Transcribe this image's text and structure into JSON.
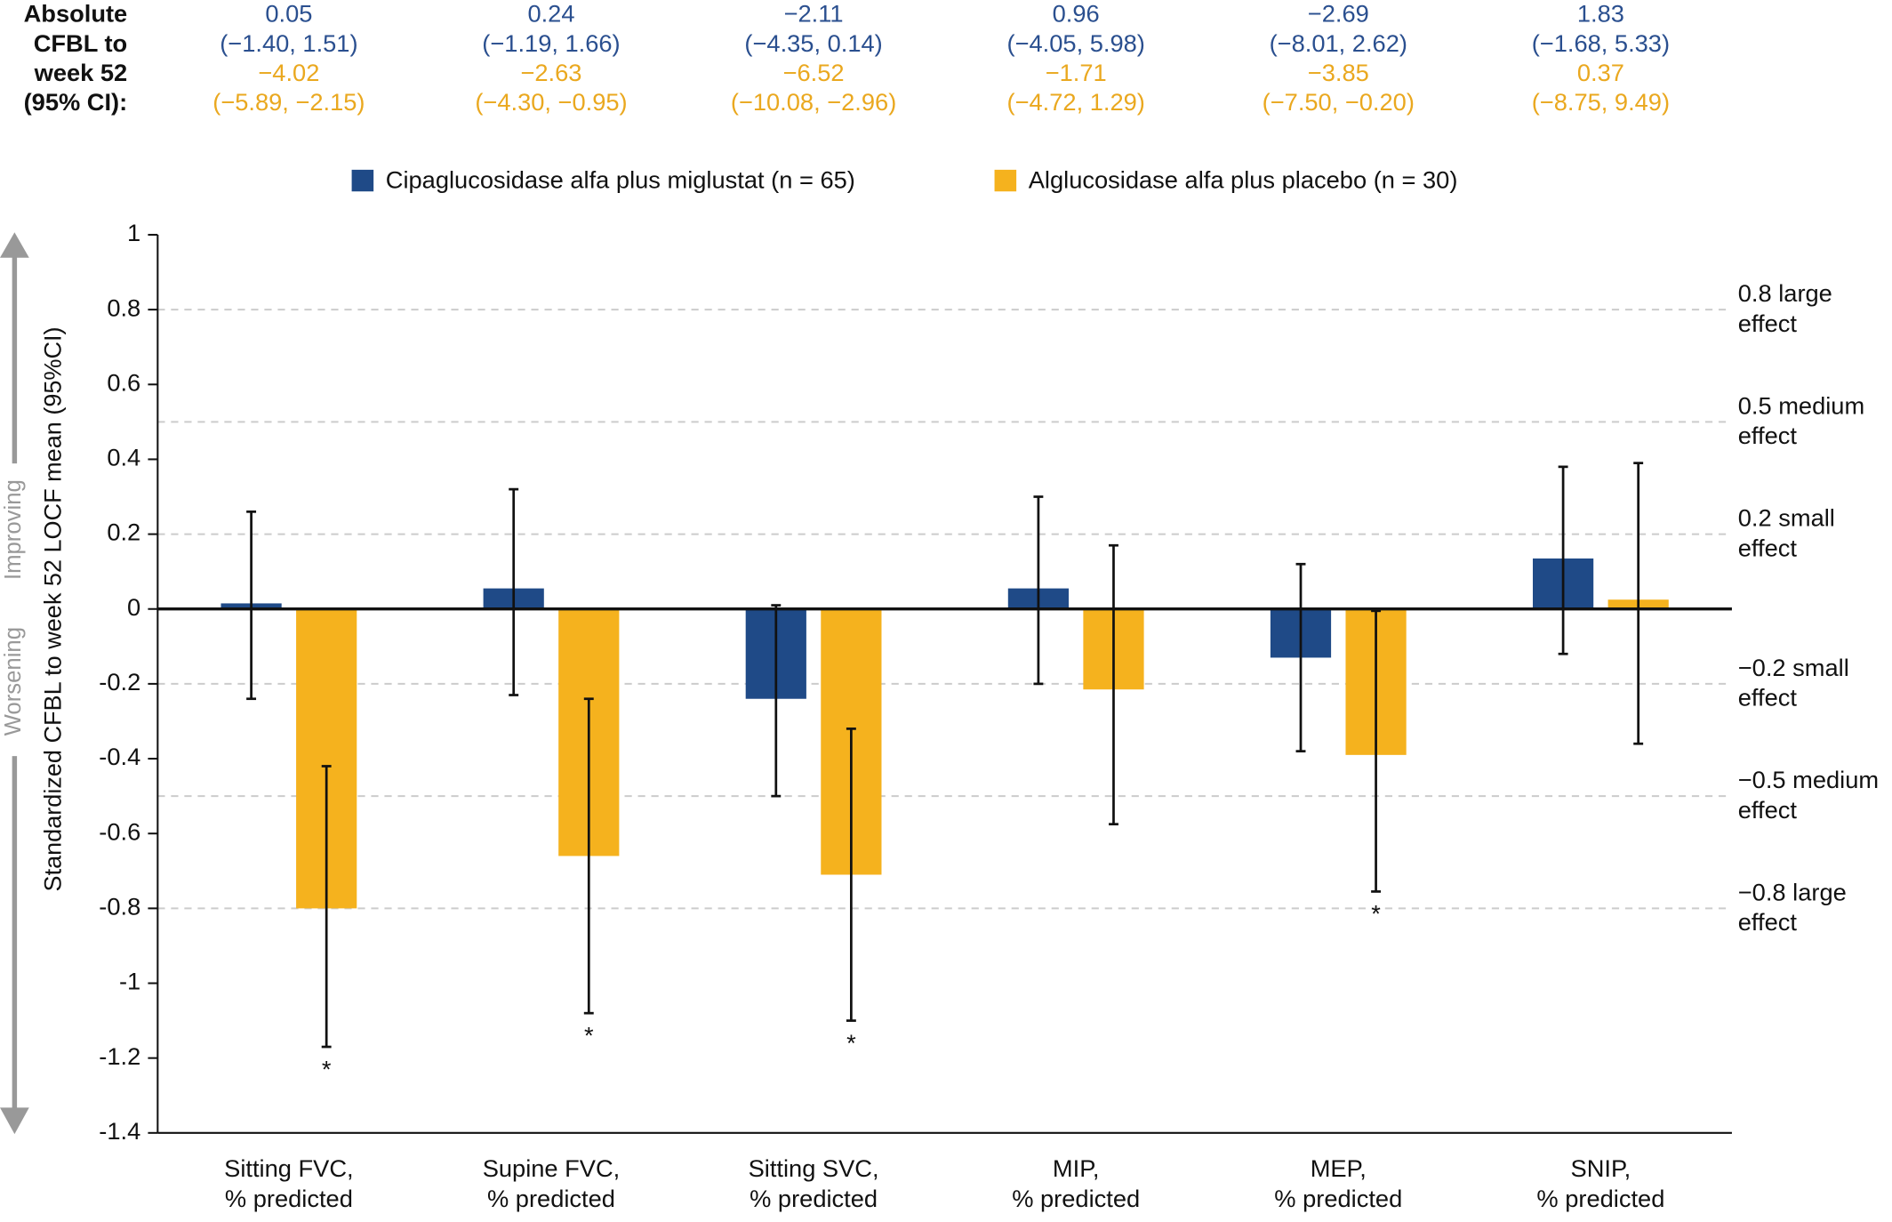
{
  "chart_data": {
    "type": "bar",
    "y_label": "Standardized CFBL to week 52 LOCF mean (95%CI)",
    "direction_labels": {
      "up": "Improving",
      "down": "Worsening"
    },
    "categories": [
      [
        "Sitting FVC,",
        "% predicted"
      ],
      [
        "Supine FVC,",
        "% predicted"
      ],
      [
        "Sitting SVC,",
        "% predicted"
      ],
      [
        "MIP,",
        "% predicted"
      ],
      [
        "MEP,",
        "% predicted"
      ],
      [
        "SNIP,",
        "% predicted"
      ]
    ],
    "series": [
      {
        "name": "Cipaglucosidase alfa plus miglustat (n = 65)",
        "color": "#1f4a87",
        "values": [
          0.015,
          0.055,
          -0.24,
          0.055,
          -0.13,
          0.135
        ],
        "ci_low": [
          -0.24,
          -0.23,
          -0.5,
          -0.2,
          -0.38,
          -0.12
        ],
        "ci_high": [
          0.26,
          0.32,
          0.01,
          0.3,
          0.12,
          0.38
        ],
        "markers": [
          null,
          null,
          null,
          null,
          null,
          null
        ]
      },
      {
        "name": "Alglucosidase alfa plus placebo (n = 30)",
        "color": "#f5b21e",
        "values": [
          -0.8,
          -0.66,
          -0.71,
          -0.215,
          -0.39,
          0.025
        ],
        "ci_low": [
          -1.17,
          -1.08,
          -1.1,
          -0.575,
          -0.755,
          -0.36
        ],
        "ci_high": [
          -0.42,
          -0.24,
          -0.32,
          0.17,
          -0.005,
          0.39
        ],
        "markers": [
          "*",
          "*",
          "*",
          null,
          "*",
          null
        ]
      }
    ],
    "absolute_table": {
      "label": [
        "Absolute",
        "CFBL to",
        "week 52",
        "(95% CI):"
      ],
      "rows": [
        {
          "series": 0,
          "cells": [
            "0.05",
            "0.24",
            "−2.11",
            "0.96",
            "−2.69",
            "1.83"
          ]
        },
        {
          "series": 0,
          "cells": [
            "(−1.40, 1.51)",
            "(−1.19, 1.66)",
            "(−4.35, 0.14)",
            "(−4.05, 5.98)",
            "(−8.01, 2.62)",
            "(−1.68, 5.33)"
          ]
        },
        {
          "series": 1,
          "cells": [
            "−4.02",
            "−2.63",
            "−6.52",
            "−1.71",
            "−3.85",
            "0.37"
          ]
        },
        {
          "series": 1,
          "cells": [
            "(−5.89, −2.15)",
            "(−4.30, −0.95)",
            "(−10.08, −2.96)",
            "(−4.72, 1.29)",
            "(−7.50, −0.20)",
            "(−8.75, 9.49)"
          ]
        }
      ]
    },
    "reference_lines": [
      {
        "value": 0.8,
        "label": [
          "0.8 large",
          "effect"
        ]
      },
      {
        "value": 0.5,
        "label": [
          "0.5 medium",
          "effect"
        ]
      },
      {
        "value": 0.2,
        "label": [
          "0.2 small",
          "effect"
        ]
      },
      {
        "value": -0.2,
        "label": [
          "−0.2 small",
          "effect"
        ]
      },
      {
        "value": -0.5,
        "label": [
          "−0.5 medium",
          "effect"
        ]
      },
      {
        "value": -0.8,
        "label": [
          "−0.8 large",
          "effect"
        ]
      }
    ],
    "ylim": [
      -1.4,
      1
    ],
    "yticks": [
      1,
      0.8,
      0.6,
      0.4,
      0.2,
      0,
      -0.2,
      -0.4,
      -0.6,
      -0.8,
      -1,
      -1.2,
      -1.4
    ]
  }
}
